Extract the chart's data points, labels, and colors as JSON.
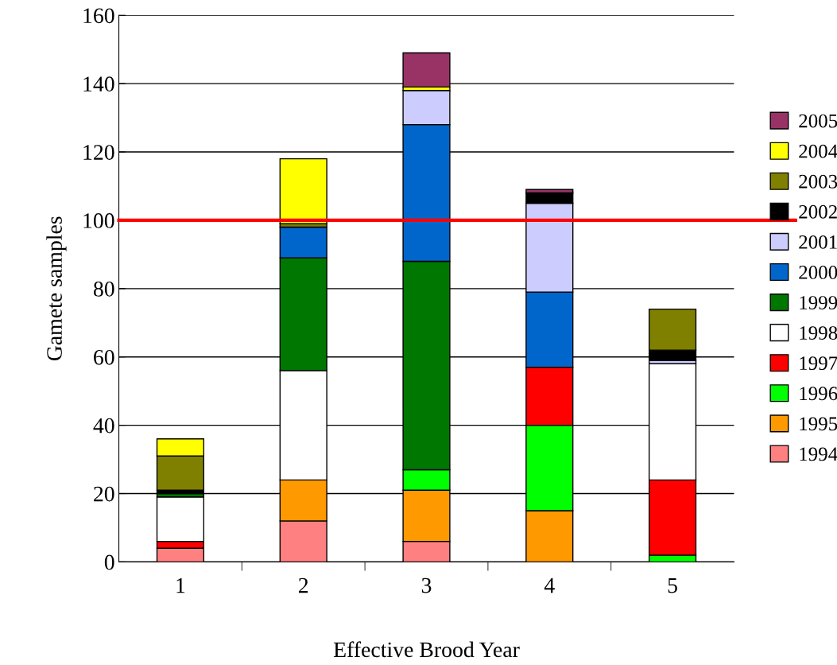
{
  "chart_data": {
    "type": "bar",
    "stacked": true,
    "xlabel": "Effective Brood Year",
    "ylabel": "Gamete samples",
    "categories": [
      "1",
      "2",
      "3",
      "4",
      "5"
    ],
    "ylim": [
      0,
      160
    ],
    "yticks": [
      0,
      20,
      40,
      60,
      80,
      100,
      120,
      140,
      160
    ],
    "grid": "y",
    "legend": "right",
    "series": [
      {
        "name": "1994",
        "color": "#ff8080",
        "values": [
          4,
          12,
          6,
          0,
          0
        ]
      },
      {
        "name": "1995",
        "color": "#ff9900",
        "values": [
          0,
          12,
          15,
          15,
          0
        ]
      },
      {
        "name": "1996",
        "color": "#00ff00",
        "values": [
          0,
          0,
          6,
          25,
          2
        ]
      },
      {
        "name": "1997",
        "color": "#ff0000",
        "values": [
          2,
          0,
          0,
          17,
          22
        ]
      },
      {
        "name": "1998",
        "color": "#ffffff",
        "values": [
          13,
          32,
          0,
          0,
          34
        ]
      },
      {
        "name": "1999",
        "color": "#007700",
        "values": [
          1,
          33,
          61,
          0,
          0
        ]
      },
      {
        "name": "2000",
        "color": "#0066cc",
        "values": [
          0,
          9,
          40,
          22,
          0
        ]
      },
      {
        "name": "2001",
        "color": "#ccccff",
        "values": [
          0,
          0,
          10,
          26,
          1
        ]
      },
      {
        "name": "2002",
        "color": "#000000",
        "values": [
          1,
          0,
          0,
          3,
          3
        ]
      },
      {
        "name": "2003",
        "color": "#808000",
        "values": [
          10,
          1,
          0,
          0,
          12
        ]
      },
      {
        "name": "2004",
        "color": "#ffff00",
        "values": [
          5,
          19,
          1,
          0,
          0
        ]
      },
      {
        "name": "2005",
        "color": "#993366",
        "values": [
          0,
          0,
          10,
          1,
          0
        ]
      }
    ],
    "ref_lines": [
      {
        "axis": "y",
        "value": 100,
        "color": "#ff0000"
      }
    ]
  }
}
